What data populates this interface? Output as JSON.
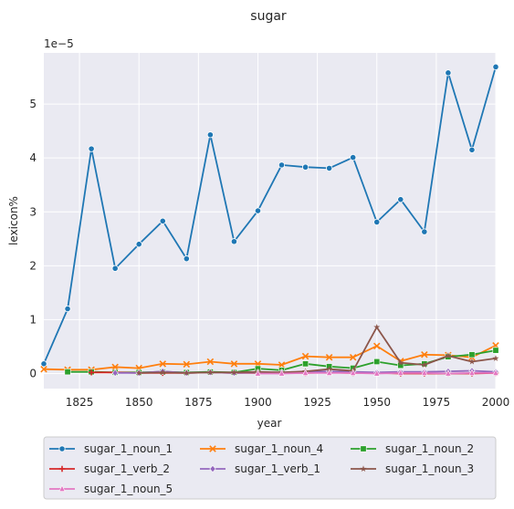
{
  "chart_data": {
    "type": "line",
    "title": "sugar",
    "xlabel": "year",
    "ylabel": "lexicon%",
    "y_multiplier_label": "1e−5",
    "xlim": [
      1810,
      2000
    ],
    "ylim": [
      -0.28,
      5.95
    ],
    "x_ticks": [
      1825,
      1850,
      1875,
      1900,
      1925,
      1950,
      1975,
      2000
    ],
    "y_ticks": [
      0,
      1,
      2,
      3,
      4,
      5
    ],
    "grid": true,
    "legend_position": "bottom",
    "series": [
      {
        "name": "sugar_1_noun_1",
        "color": "#1f77b4",
        "marker": "circle",
        "x": [
          1810,
          1820,
          1830,
          1840,
          1850,
          1860,
          1870,
          1880,
          1890,
          1900,
          1910,
          1920,
          1930,
          1940,
          1950,
          1960,
          1970,
          1980,
          1990,
          2000
        ],
        "y": [
          0.18,
          1.2,
          4.17,
          1.95,
          2.4,
          2.83,
          2.13,
          4.43,
          2.45,
          3.02,
          3.87,
          3.83,
          3.81,
          4.01,
          2.81,
          3.23,
          2.63,
          5.58,
          4.15,
          5.69
        ]
      },
      {
        "name": "sugar_1_noun_4",
        "color": "#ff7f0e",
        "marker": "x",
        "x": [
          1810,
          1820,
          1830,
          1840,
          1850,
          1860,
          1870,
          1880,
          1890,
          1900,
          1910,
          1920,
          1930,
          1940,
          1950,
          1960,
          1970,
          1980,
          1990,
          2000
        ],
        "y": [
          0.08,
          0.07,
          0.07,
          0.12,
          0.1,
          0.18,
          0.17,
          0.22,
          0.18,
          0.18,
          0.16,
          0.32,
          0.3,
          0.3,
          0.51,
          0.23,
          0.35,
          0.34,
          0.3,
          0.52
        ]
      },
      {
        "name": "sugar_1_noun_2",
        "color": "#2ca02c",
        "marker": "square",
        "x": [
          1820,
          1830,
          1840,
          1850,
          1860,
          1870,
          1880,
          1890,
          1900,
          1910,
          1920,
          1930,
          1940,
          1950,
          1960,
          1970,
          1980,
          1990,
          2000
        ],
        "y": [
          0.03,
          0.03,
          0.02,
          0.02,
          0.03,
          0.02,
          0.03,
          0.02,
          0.09,
          0.06,
          0.18,
          0.13,
          0.1,
          0.22,
          0.15,
          0.18,
          0.31,
          0.35,
          0.43
        ]
      },
      {
        "name": "sugar_1_verb_2",
        "color": "#d62728",
        "marker": "plus",
        "x": [
          1830,
          1840,
          1850,
          1860,
          1870,
          1880,
          1890,
          1900,
          1910,
          1920,
          1930,
          1940,
          1950,
          1960,
          1970,
          1980,
          1990,
          2000
        ],
        "y": [
          0.02,
          0.02,
          0.01,
          0.01,
          0.01,
          0.02,
          0.01,
          0.01,
          0.01,
          0.01,
          0.02,
          0.01,
          0.01,
          0.0,
          0.0,
          0.0,
          0.0,
          0.01
        ]
      },
      {
        "name": "sugar_1_verb_1",
        "color": "#9467bd",
        "marker": "diamond",
        "x": [
          1840,
          1850,
          1860,
          1870,
          1880,
          1890,
          1900,
          1910,
          1920,
          1930,
          1940,
          1950,
          1960,
          1970,
          1980,
          1990,
          2000
        ],
        "y": [
          0.01,
          0.01,
          0.04,
          0.01,
          0.02,
          0.01,
          0.02,
          0.02,
          0.03,
          0.04,
          0.03,
          0.02,
          0.03,
          0.03,
          0.04,
          0.05,
          0.03
        ]
      },
      {
        "name": "sugar_1_noun_3",
        "color": "#8c564b",
        "marker": "star",
        "x": [
          1850,
          1860,
          1870,
          1880,
          1890,
          1900,
          1910,
          1920,
          1930,
          1940,
          1950,
          1960,
          1970,
          1980,
          1990,
          2000
        ],
        "y": [
          0.01,
          0.02,
          0.01,
          0.02,
          0.02,
          0.03,
          0.02,
          0.04,
          0.08,
          0.05,
          0.86,
          0.2,
          0.16,
          0.33,
          0.22,
          0.28
        ]
      },
      {
        "name": "sugar_1_noun_5",
        "color": "#e377c2",
        "marker": "triangle",
        "x": [
          1900,
          1910,
          1920,
          1930,
          1940,
          1950,
          1960,
          1970,
          1980,
          1990,
          2000
        ],
        "y": [
          0.0,
          0.0,
          0.01,
          0.01,
          0.01,
          0.0,
          0.01,
          0.01,
          0.0,
          0.01,
          0.01
        ]
      }
    ]
  }
}
